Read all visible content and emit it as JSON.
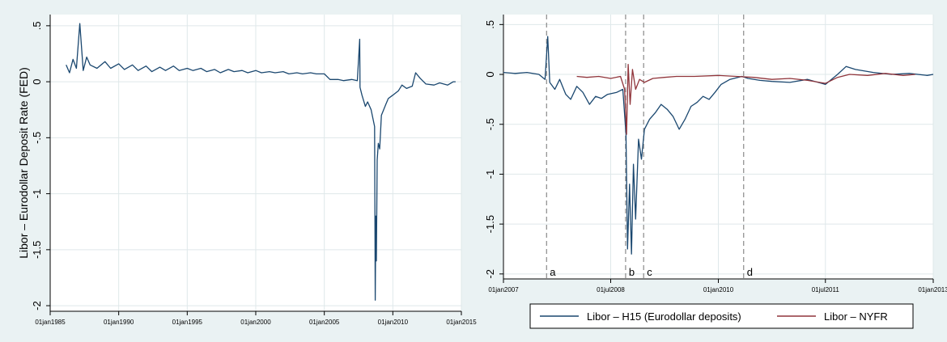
{
  "colors": {
    "background_outer": "#eaf2f3",
    "plot_background": "#ffffff",
    "grid": "#dfe8ea",
    "series_blue": "#1a476f",
    "series_red": "#90353b",
    "vline": "#8a8a8a"
  },
  "chart_data": [
    {
      "type": "line",
      "ylabel": "Libor – Eurodollar Deposit Rate (FED)",
      "xlim": [
        "1985-01-01",
        "2015-01-01"
      ],
      "ylim": [
        -2,
        0.5
      ],
      "x_ticks": [
        "01jan1985",
        "01jan1990",
        "01jan1995",
        "01jan2000",
        "01jan2005",
        "01jan2010",
        "01jan2015"
      ],
      "y_ticks": [
        ".5",
        "0",
        "-.5",
        "-1",
        "-1.5",
        "-2"
      ],
      "grid": true,
      "series": [
        {
          "color": "#1a476f",
          "points": [
            [
              "1986-03-01",
              0.15
            ],
            [
              "1986-06-01",
              0.08
            ],
            [
              "1986-09-01",
              0.2
            ],
            [
              "1986-12-01",
              0.12
            ],
            [
              "1987-03-01",
              0.52
            ],
            [
              "1987-06-01",
              0.1
            ],
            [
              "1987-09-01",
              0.22
            ],
            [
              "1987-12-01",
              0.15
            ],
            [
              "1988-06-01",
              0.12
            ],
            [
              "1989-01-01",
              0.18
            ],
            [
              "1989-06-01",
              0.12
            ],
            [
              "1990-01-01",
              0.16
            ],
            [
              "1990-06-01",
              0.11
            ],
            [
              "1991-01-01",
              0.15
            ],
            [
              "1991-06-01",
              0.1
            ],
            [
              "1992-01-01",
              0.14
            ],
            [
              "1992-06-01",
              0.09
            ],
            [
              "1993-01-01",
              0.13
            ],
            [
              "1993-06-01",
              0.1
            ],
            [
              "1994-01-01",
              0.14
            ],
            [
              "1994-06-01",
              0.1
            ],
            [
              "1995-01-01",
              0.12
            ],
            [
              "1995-06-01",
              0.1
            ],
            [
              "1996-01-01",
              0.12
            ],
            [
              "1996-06-01",
              0.09
            ],
            [
              "1997-01-01",
              0.11
            ],
            [
              "1997-06-01",
              0.08
            ],
            [
              "1998-01-01",
              0.11
            ],
            [
              "1998-06-01",
              0.09
            ],
            [
              "1999-01-01",
              0.1
            ],
            [
              "1999-06-01",
              0.08
            ],
            [
              "2000-01-01",
              0.1
            ],
            [
              "2000-06-01",
              0.08
            ],
            [
              "2001-01-01",
              0.09
            ],
            [
              "2001-06-01",
              0.08
            ],
            [
              "2002-01-01",
              0.09
            ],
            [
              "2002-06-01",
              0.07
            ],
            [
              "2003-01-01",
              0.08
            ],
            [
              "2003-06-01",
              0.07
            ],
            [
              "2004-01-01",
              0.08
            ],
            [
              "2004-06-01",
              0.07
            ],
            [
              "2005-01-01",
              0.07
            ],
            [
              "2005-06-01",
              0.02
            ],
            [
              "2006-01-01",
              0.02
            ],
            [
              "2006-06-01",
              0.01
            ],
            [
              "2007-01-01",
              0.02
            ],
            [
              "2007-06-01",
              0.01
            ],
            [
              "2007-08-01",
              0.38
            ],
            [
              "2007-08-10",
              -0.05
            ],
            [
              "2007-10-01",
              -0.12
            ],
            [
              "2008-01-01",
              -0.22
            ],
            [
              "2008-03-01",
              -0.18
            ],
            [
              "2008-06-01",
              -0.25
            ],
            [
              "2008-09-01",
              -0.4
            ],
            [
              "2008-09-20",
              -1.95
            ],
            [
              "2008-10-05",
              -1.2
            ],
            [
              "2008-10-20",
              -1.6
            ],
            [
              "2008-11-10",
              -0.7
            ],
            [
              "2008-12-10",
              -0.55
            ],
            [
              "2009-01-15",
              -0.6
            ],
            [
              "2009-03-01",
              -0.3
            ],
            [
              "2009-05-01",
              -0.25
            ],
            [
              "2009-07-01",
              -0.2
            ],
            [
              "2009-09-01",
              -0.15
            ],
            [
              "2010-01-01",
              -0.12
            ],
            [
              "2010-06-01",
              -0.08
            ],
            [
              "2010-09-01",
              -0.03
            ],
            [
              "2011-01-01",
              -0.06
            ],
            [
              "2011-06-01",
              -0.04
            ],
            [
              "2011-09-01",
              0.08
            ],
            [
              "2012-01-01",
              0.03
            ],
            [
              "2012-06-01",
              -0.02
            ],
            [
              "2013-01-01",
              -0.03
            ],
            [
              "2013-06-01",
              -0.01
            ],
            [
              "2014-01-01",
              -0.03
            ],
            [
              "2014-06-01",
              0.0
            ],
            [
              "2014-08-01",
              0.0
            ]
          ]
        }
      ]
    },
    {
      "type": "line",
      "xlim": [
        "2007-01-01",
        "2013-01-01"
      ],
      "ylim": [
        -2,
        0.5
      ],
      "x_ticks": [
        "01jan2007",
        "01jul2008",
        "01jan2010",
        "01jul2011",
        "01jan2013"
      ],
      "y_ticks": [
        ".5",
        "0",
        "-.5",
        "-1",
        "-1.5",
        "-2"
      ],
      "grid": true,
      "legend_position": "bottom",
      "vlines": [
        {
          "date": "2007-08-09",
          "label": "a"
        },
        {
          "date": "2008-09-15",
          "label": "b"
        },
        {
          "date": "2008-12-16",
          "label": "c"
        },
        {
          "date": "2010-05-10",
          "label": "d"
        }
      ],
      "series": [
        {
          "name": "Libor – H15 (Eurodollar deposits)",
          "color": "#1a476f",
          "points": [
            [
              "2007-01-01",
              0.02
            ],
            [
              "2007-03-01",
              0.01
            ],
            [
              "2007-05-01",
              0.02
            ],
            [
              "2007-07-01",
              0.0
            ],
            [
              "2007-08-01",
              -0.05
            ],
            [
              "2007-08-15",
              0.38
            ],
            [
              "2007-08-25",
              -0.08
            ],
            [
              "2007-09-20",
              -0.15
            ],
            [
              "2007-10-15",
              -0.05
            ],
            [
              "2007-11-15",
              -0.2
            ],
            [
              "2007-12-10",
              -0.25
            ],
            [
              "2008-01-10",
              -0.12
            ],
            [
              "2008-02-10",
              -0.18
            ],
            [
              "2008-03-15",
              -0.3
            ],
            [
              "2008-04-15",
              -0.22
            ],
            [
              "2008-05-15",
              -0.24
            ],
            [
              "2008-06-15",
              -0.2
            ],
            [
              "2008-08-01",
              -0.18
            ],
            [
              "2008-09-01",
              -0.15
            ],
            [
              "2008-09-17",
              -0.6
            ],
            [
              "2008-09-25",
              -1.75
            ],
            [
              "2008-10-05",
              -1.1
            ],
            [
              "2008-10-15",
              -1.8
            ],
            [
              "2008-10-25",
              -0.9
            ],
            [
              "2008-11-05",
              -1.45
            ],
            [
              "2008-11-20",
              -0.65
            ],
            [
              "2008-12-05",
              -0.85
            ],
            [
              "2008-12-20",
              -0.55
            ],
            [
              "2009-01-15",
              -0.45
            ],
            [
              "2009-02-15",
              -0.38
            ],
            [
              "2009-03-15",
              -0.3
            ],
            [
              "2009-04-15",
              -0.35
            ],
            [
              "2009-05-15",
              -0.42
            ],
            [
              "2009-06-15",
              -0.55
            ],
            [
              "2009-07-15",
              -0.45
            ],
            [
              "2009-08-15",
              -0.32
            ],
            [
              "2009-09-15",
              -0.28
            ],
            [
              "2009-10-15",
              -0.22
            ],
            [
              "2009-11-15",
              -0.25
            ],
            [
              "2009-12-15",
              -0.18
            ],
            [
              "2010-01-15",
              -0.1
            ],
            [
              "2010-03-01",
              -0.05
            ],
            [
              "2010-05-01",
              -0.02
            ],
            [
              "2010-06-01",
              -0.04
            ],
            [
              "2010-08-01",
              -0.06
            ],
            [
              "2010-10-01",
              -0.07
            ],
            [
              "2011-01-01",
              -0.08
            ],
            [
              "2011-04-01",
              -0.05
            ],
            [
              "2011-07-01",
              -0.1
            ],
            [
              "2011-09-01",
              0.0
            ],
            [
              "2011-10-15",
              0.08
            ],
            [
              "2011-12-01",
              0.05
            ],
            [
              "2012-03-01",
              0.02
            ],
            [
              "2012-06-01",
              0.0
            ],
            [
              "2012-09-01",
              0.01
            ],
            [
              "2012-12-01",
              -0.01
            ],
            [
              "2013-01-01",
              0.0
            ]
          ]
        },
        {
          "name": "Libor – NYFR",
          "color": "#90353b",
          "points": [
            [
              "2008-01-10",
              -0.02
            ],
            [
              "2008-03-01",
              -0.03
            ],
            [
              "2008-05-01",
              -0.02
            ],
            [
              "2008-07-01",
              -0.04
            ],
            [
              "2008-08-20",
              -0.02
            ],
            [
              "2008-09-10",
              -0.15
            ],
            [
              "2008-09-20",
              -0.6
            ],
            [
              "2008-09-28",
              0.1
            ],
            [
              "2008-10-08",
              -0.3
            ],
            [
              "2008-10-20",
              0.05
            ],
            [
              "2008-11-05",
              -0.15
            ],
            [
              "2008-11-25",
              -0.05
            ],
            [
              "2008-12-20",
              -0.08
            ],
            [
              "2009-02-01",
              -0.04
            ],
            [
              "2009-04-01",
              -0.03
            ],
            [
              "2009-06-01",
              -0.02
            ],
            [
              "2009-09-01",
              -0.02
            ],
            [
              "2010-01-01",
              -0.01
            ],
            [
              "2010-04-01",
              -0.02
            ],
            [
              "2010-07-01",
              -0.03
            ],
            [
              "2010-10-01",
              -0.05
            ],
            [
              "2011-01-01",
              -0.04
            ],
            [
              "2011-04-01",
              -0.06
            ],
            [
              "2011-07-01",
              -0.09
            ],
            [
              "2011-09-01",
              -0.03
            ],
            [
              "2011-11-01",
              0.0
            ],
            [
              "2012-02-01",
              -0.01
            ],
            [
              "2012-05-01",
              0.01
            ],
            [
              "2012-08-01",
              -0.01
            ],
            [
              "2012-10-01",
              0.0
            ]
          ]
        }
      ]
    }
  ]
}
